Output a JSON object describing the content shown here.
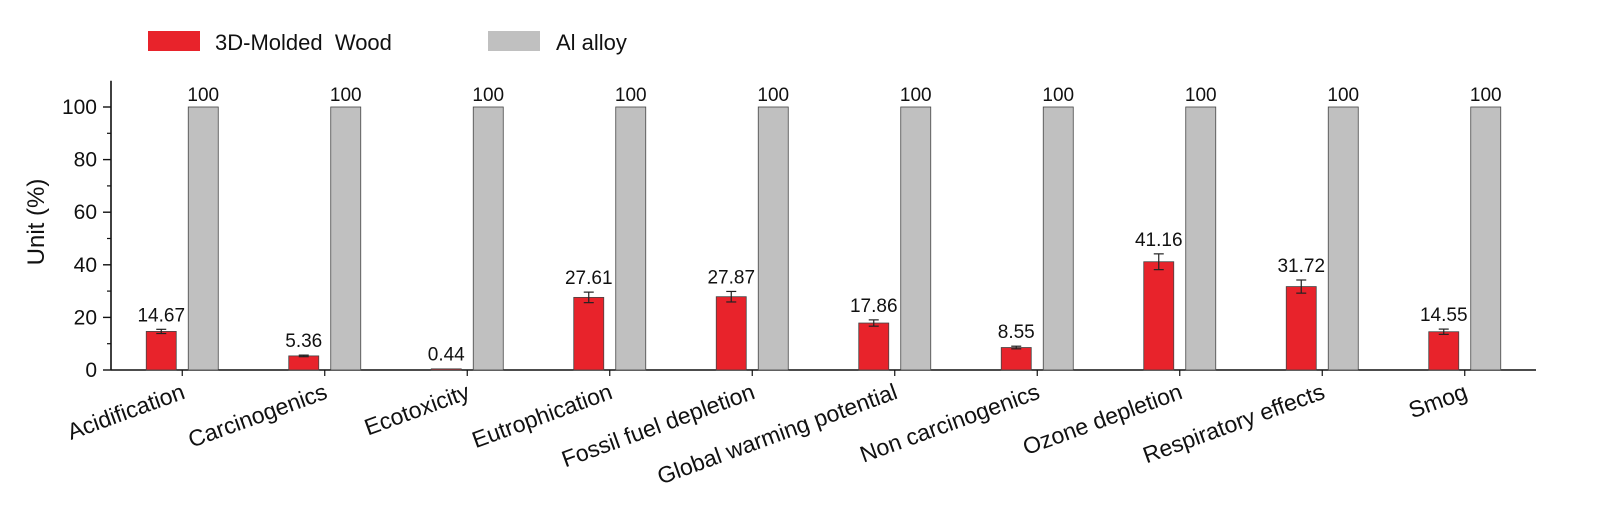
{
  "chart_data": {
    "type": "bar",
    "title": "",
    "xlabel": "",
    "ylabel": "Unit (%)",
    "ylim": [
      0,
      110
    ],
    "yticks": [
      0,
      20,
      40,
      60,
      80,
      100
    ],
    "grid": false,
    "legend_position": "top-left",
    "categories": [
      "Acidification",
      "Carcinogenics",
      "Ecotoxicity",
      "Eutrophication",
      "Fossil fuel depletion",
      "Global warming potential",
      "Non carcinogenics",
      "Ozone depletion",
      "Respiratory effects",
      "Smog"
    ],
    "series": [
      {
        "name": "3D-Molded  Wood",
        "color": "#e8232b",
        "values": [
          14.67,
          5.36,
          0.44,
          27.61,
          27.87,
          17.86,
          8.55,
          41.16,
          31.72,
          14.55
        ],
        "value_labels": [
          "14.67",
          "5.36",
          "0.44",
          "27.61",
          "27.87",
          "17.86",
          "8.55",
          "41.16",
          "31.72",
          "14.55"
        ],
        "errors": [
          0.8,
          0.3,
          0.1,
          2.0,
          2.0,
          1.2,
          0.5,
          3.0,
          2.5,
          1.0
        ]
      },
      {
        "name": "Al alloy",
        "color": "#c0c0c0",
        "values": [
          100,
          100,
          100,
          100,
          100,
          100,
          100,
          100,
          100,
          100
        ],
        "value_labels": [
          "100",
          "100",
          "100",
          "100",
          "100",
          "100",
          "100",
          "100",
          "100",
          "100"
        ]
      }
    ]
  }
}
